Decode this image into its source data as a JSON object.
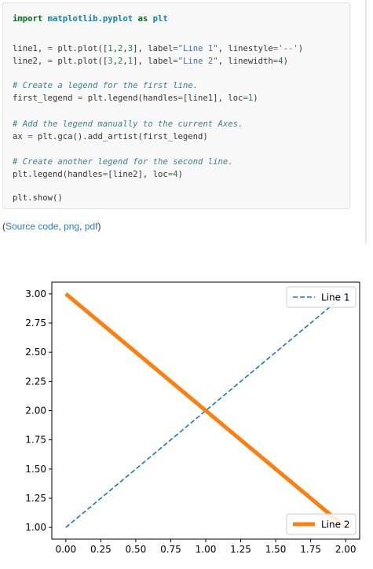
{
  "code": {
    "lines": [
      [
        {
          "t": "import",
          "c": "kw"
        },
        {
          "t": " ",
          "c": "nm"
        },
        {
          "t": "matplotlib.pyplot",
          "c": "mod"
        },
        {
          "t": " ",
          "c": "nm"
        },
        {
          "t": "as",
          "c": "kw"
        },
        {
          "t": " ",
          "c": "nm"
        },
        {
          "t": "plt",
          "c": "mod"
        }
      ],
      [],
      [
        {
          "t": "line1, ",
          "c": "nm"
        },
        {
          "t": "=",
          "c": "op"
        },
        {
          "t": " plt.plot([",
          "c": "nm"
        },
        {
          "t": "1",
          "c": "num"
        },
        {
          "t": ",",
          "c": "nm"
        },
        {
          "t": "2",
          "c": "num"
        },
        {
          "t": ",",
          "c": "nm"
        },
        {
          "t": "3",
          "c": "num"
        },
        {
          "t": "], label",
          "c": "nm"
        },
        {
          "t": "=",
          "c": "op"
        },
        {
          "t": "\"Line 1\"",
          "c": "str"
        },
        {
          "t": ", linestyle",
          "c": "nm"
        },
        {
          "t": "=",
          "c": "op"
        },
        {
          "t": "'--'",
          "c": "str"
        },
        {
          "t": ")",
          "c": "nm"
        }
      ],
      [
        {
          "t": "line2, ",
          "c": "nm"
        },
        {
          "t": "=",
          "c": "op"
        },
        {
          "t": " plt.plot([",
          "c": "nm"
        },
        {
          "t": "3",
          "c": "num"
        },
        {
          "t": ",",
          "c": "nm"
        },
        {
          "t": "2",
          "c": "num"
        },
        {
          "t": ",",
          "c": "nm"
        },
        {
          "t": "1",
          "c": "num"
        },
        {
          "t": "], label",
          "c": "nm"
        },
        {
          "t": "=",
          "c": "op"
        },
        {
          "t": "\"Line 2\"",
          "c": "str"
        },
        {
          "t": ", linewidth",
          "c": "nm"
        },
        {
          "t": "=",
          "c": "op"
        },
        {
          "t": "4",
          "c": "num"
        },
        {
          "t": ")",
          "c": "nm"
        }
      ],
      [],
      [
        {
          "t": "# Create a legend for the first line.",
          "c": "cm"
        }
      ],
      [
        {
          "t": "first_legend ",
          "c": "nm"
        },
        {
          "t": "=",
          "c": "op"
        },
        {
          "t": " plt.legend(handles",
          "c": "nm"
        },
        {
          "t": "=",
          "c": "op"
        },
        {
          "t": "[line1], loc",
          "c": "nm"
        },
        {
          "t": "=",
          "c": "op"
        },
        {
          "t": "1",
          "c": "num"
        },
        {
          "t": ")",
          "c": "nm"
        }
      ],
      [],
      [
        {
          "t": "# Add the legend manually to the current Axes.",
          "c": "cm"
        }
      ],
      [
        {
          "t": "ax ",
          "c": "nm"
        },
        {
          "t": "=",
          "c": "op"
        },
        {
          "t": " plt.gca().add_artist(first_legend)",
          "c": "nm"
        }
      ],
      [],
      [
        {
          "t": "# Create another legend for the second line.",
          "c": "cm"
        }
      ],
      [
        {
          "t": "plt.legend(handles",
          "c": "nm"
        },
        {
          "t": "=",
          "c": "op"
        },
        {
          "t": "[line2], loc",
          "c": "nm"
        },
        {
          "t": "=",
          "c": "op"
        },
        {
          "t": "4",
          "c": "num"
        },
        {
          "t": ")",
          "c": "nm"
        }
      ],
      [],
      [
        {
          "t": "plt.show()",
          "c": "nm"
        }
      ]
    ]
  },
  "source_links": {
    "open": "(",
    "source_label": "Source code",
    "sep1": ", ",
    "png_label": "png",
    "sep2": ", ",
    "pdf_label": "pdf",
    "close": ")"
  },
  "colors": {
    "link": "#2980b9",
    "line1": "#1f77b4",
    "line2": "#ff7f0e"
  },
  "chart_data": {
    "type": "line",
    "title": "",
    "xlabel": "",
    "ylabel": "",
    "xlim": [
      -0.1,
      2.1
    ],
    "ylim": [
      0.9,
      3.1
    ],
    "xticks": [
      "0.00",
      "0.25",
      "0.50",
      "0.75",
      "1.00",
      "1.25",
      "1.50",
      "1.75",
      "2.00"
    ],
    "yticks": [
      "1.00",
      "1.25",
      "1.50",
      "1.75",
      "2.00",
      "2.25",
      "2.50",
      "2.75",
      "3.00"
    ],
    "grid": false,
    "series": [
      {
        "name": "Line 1",
        "x": [
          0,
          1,
          2
        ],
        "y": [
          1,
          2,
          3
        ],
        "linestyle": "dashed",
        "color": "#1f77b4",
        "legend": "upper right"
      },
      {
        "name": "Line 2",
        "x": [
          0,
          1,
          2
        ],
        "y": [
          3,
          2,
          1
        ],
        "linestyle": "solid",
        "color": "#ff7f0e",
        "legend": "lower right"
      }
    ]
  }
}
